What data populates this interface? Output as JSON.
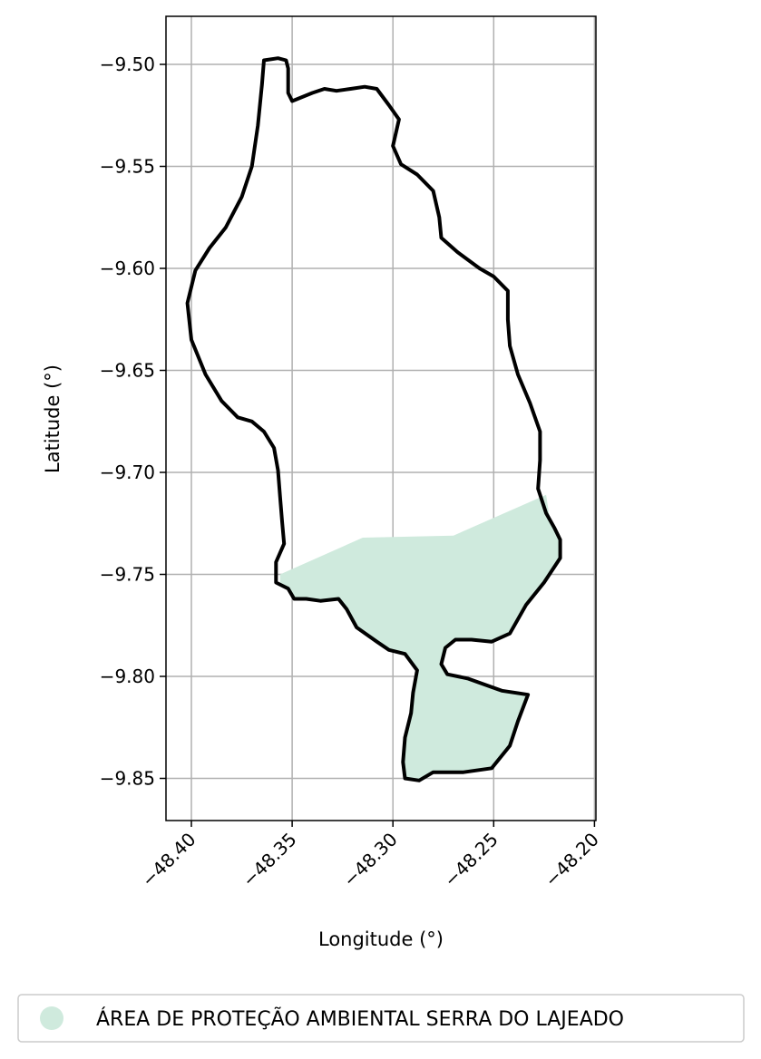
{
  "chart_data": {
    "type": "map",
    "xlabel": "Longitude (°)",
    "ylabel": "Latitude (°)",
    "xlim": [
      -48.413,
      -48.2
    ],
    "ylim": [
      -9.87,
      -9.477
    ],
    "xticks": [
      -48.4,
      -48.35,
      -48.3,
      -48.25,
      -48.2
    ],
    "yticks": [
      -9.5,
      -9.55,
      -9.6,
      -9.65,
      -9.7,
      -9.75,
      -9.8,
      -9.85
    ],
    "xtick_labels": [
      "−48.40",
      "−48.35",
      "−48.30",
      "−48.25",
      "−48.20"
    ],
    "ytick_labels": [
      "−9.50",
      "−9.55",
      "−9.60",
      "−9.65",
      "−9.70",
      "−9.75",
      "−9.80",
      "−9.85"
    ],
    "grid": true,
    "legend_position": "bottom",
    "legend": [
      {
        "label": "ÁREA DE PROTEÇÃO AMBIENTAL SERRA DO LAJEADO",
        "color": "#cfeadd"
      }
    ],
    "colors": {
      "boundary": "#000000",
      "protected_area": "#cfeadd",
      "grid": "#b0b0b0"
    },
    "boundary": [
      [
        -48.364,
        -9.498
      ],
      [
        -48.357,
        -9.497
      ],
      [
        -48.353,
        -9.498
      ],
      [
        -48.352,
        -9.502
      ],
      [
        -48.352,
        -9.508
      ],
      [
        -48.352,
        -9.514
      ],
      [
        -48.35,
        -9.518
      ],
      [
        -48.345,
        -9.516
      ],
      [
        -48.34,
        -9.514
      ],
      [
        -48.334,
        -9.512
      ],
      [
        -48.328,
        -9.513
      ],
      [
        -48.321,
        -9.512
      ],
      [
        -48.314,
        -9.511
      ],
      [
        -48.308,
        -9.512
      ],
      [
        -48.302,
        -9.52
      ],
      [
        -48.297,
        -9.527
      ],
      [
        -48.3,
        -9.54
      ],
      [
        -48.296,
        -9.549
      ],
      [
        -48.288,
        -9.554
      ],
      [
        -48.28,
        -9.562
      ],
      [
        -48.277,
        -9.575
      ],
      [
        -48.276,
        -9.585
      ],
      [
        -48.268,
        -9.592
      ],
      [
        -48.257,
        -9.6
      ],
      [
        -48.25,
        -9.604
      ],
      [
        -48.243,
        -9.611
      ],
      [
        -48.243,
        -9.625
      ],
      [
        -48.242,
        -9.638
      ],
      [
        -48.238,
        -9.652
      ],
      [
        -48.232,
        -9.666
      ],
      [
        -48.227,
        -9.68
      ],
      [
        -48.227,
        -9.694
      ],
      [
        -48.228,
        -9.708
      ],
      [
        -48.224,
        -9.72
      ],
      [
        -48.22,
        -9.727
      ],
      [
        -48.217,
        -9.733
      ],
      [
        -48.217,
        -9.742
      ],
      [
        -48.225,
        -9.754
      ],
      [
        -48.234,
        -9.765
      ],
      [
        -48.242,
        -9.779
      ],
      [
        -48.251,
        -9.783
      ],
      [
        -48.261,
        -9.782
      ],
      [
        -48.269,
        -9.782
      ],
      [
        -48.274,
        -9.786
      ],
      [
        -48.276,
        -9.794
      ],
      [
        -48.273,
        -9.799
      ],
      [
        -48.263,
        -9.801
      ],
      [
        -48.246,
        -9.807
      ],
      [
        -48.233,
        -9.809
      ],
      [
        -48.238,
        -9.822
      ],
      [
        -48.242,
        -9.834
      ],
      [
        -48.251,
        -9.845
      ],
      [
        -48.265,
        -9.847
      ],
      [
        -48.28,
        -9.847
      ],
      [
        -48.287,
        -9.851
      ],
      [
        -48.294,
        -9.85
      ],
      [
        -48.295,
        -9.842
      ],
      [
        -48.294,
        -9.83
      ],
      [
        -48.291,
        -9.818
      ],
      [
        -48.29,
        -9.808
      ],
      [
        -48.288,
        -9.797
      ],
      [
        -48.294,
        -9.789
      ],
      [
        -48.302,
        -9.787
      ],
      [
        -48.308,
        -9.783
      ],
      [
        -48.318,
        -9.776
      ],
      [
        -48.323,
        -9.767
      ],
      [
        -48.327,
        -9.762
      ],
      [
        -48.336,
        -9.763
      ],
      [
        -48.343,
        -9.762
      ],
      [
        -48.349,
        -9.762
      ],
      [
        -48.352,
        -9.757
      ],
      [
        -48.358,
        -9.754
      ],
      [
        -48.358,
        -9.744
      ],
      [
        -48.354,
        -9.735
      ],
      [
        -48.355,
        -9.724
      ],
      [
        -48.356,
        -9.712
      ],
      [
        -48.357,
        -9.699
      ],
      [
        -48.359,
        -9.688
      ],
      [
        -48.364,
        -9.68
      ],
      [
        -48.37,
        -9.675
      ],
      [
        -48.377,
        -9.673
      ],
      [
        -48.385,
        -9.665
      ],
      [
        -48.393,
        -9.652
      ],
      [
        -48.4,
        -9.635
      ],
      [
        -48.402,
        -9.617
      ],
      [
        -48.398,
        -9.601
      ],
      [
        -48.391,
        -9.59
      ],
      [
        -48.383,
        -9.58
      ],
      [
        -48.375,
        -9.565
      ],
      [
        -48.37,
        -9.55
      ],
      [
        -48.367,
        -9.53
      ],
      [
        -48.365,
        -9.51
      ]
    ],
    "protected_area": [
      [
        -48.356,
        -9.75
      ],
      [
        -48.315,
        -9.732
      ],
      [
        -48.27,
        -9.731
      ],
      [
        -48.224,
        -9.711
      ],
      [
        -48.222,
        -9.724
      ],
      [
        -48.217,
        -9.733
      ],
      [
        -48.217,
        -9.742
      ],
      [
        -48.225,
        -9.754
      ],
      [
        -48.234,
        -9.765
      ],
      [
        -48.242,
        -9.779
      ],
      [
        -48.251,
        -9.783
      ],
      [
        -48.261,
        -9.782
      ],
      [
        -48.269,
        -9.782
      ],
      [
        -48.274,
        -9.786
      ],
      [
        -48.276,
        -9.794
      ],
      [
        -48.273,
        -9.799
      ],
      [
        -48.263,
        -9.801
      ],
      [
        -48.246,
        -9.807
      ],
      [
        -48.233,
        -9.809
      ],
      [
        -48.238,
        -9.822
      ],
      [
        -48.242,
        -9.834
      ],
      [
        -48.251,
        -9.845
      ],
      [
        -48.265,
        -9.847
      ],
      [
        -48.28,
        -9.847
      ],
      [
        -48.287,
        -9.851
      ],
      [
        -48.294,
        -9.85
      ],
      [
        -48.295,
        -9.842
      ],
      [
        -48.294,
        -9.83
      ],
      [
        -48.291,
        -9.818
      ],
      [
        -48.29,
        -9.808
      ],
      [
        -48.288,
        -9.797
      ],
      [
        -48.294,
        -9.789
      ],
      [
        -48.302,
        -9.787
      ],
      [
        -48.308,
        -9.783
      ],
      [
        -48.318,
        -9.776
      ],
      [
        -48.323,
        -9.767
      ],
      [
        -48.327,
        -9.762
      ],
      [
        -48.336,
        -9.763
      ],
      [
        -48.343,
        -9.762
      ],
      [
        -48.349,
        -9.762
      ],
      [
        -48.352,
        -9.757
      ],
      [
        -48.356,
        -9.754
      ]
    ]
  }
}
